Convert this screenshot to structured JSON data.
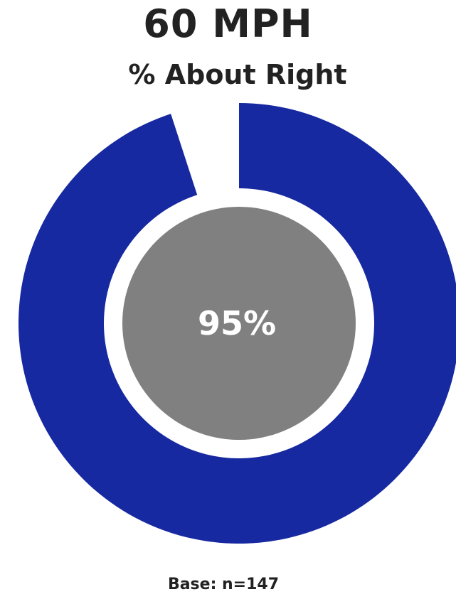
{
  "chart_data": {
    "type": "pie",
    "title": "60 MPH",
    "subtitle": "% About Right",
    "slices": [
      {
        "label": "About Right",
        "value": 95,
        "color": "#1629A0"
      },
      {
        "label": "",
        "value": 5,
        "color": "#FFFFFF"
      }
    ],
    "center_value_label": "95%",
    "center_color": "#808080",
    "base_note": "Base: n=147"
  }
}
